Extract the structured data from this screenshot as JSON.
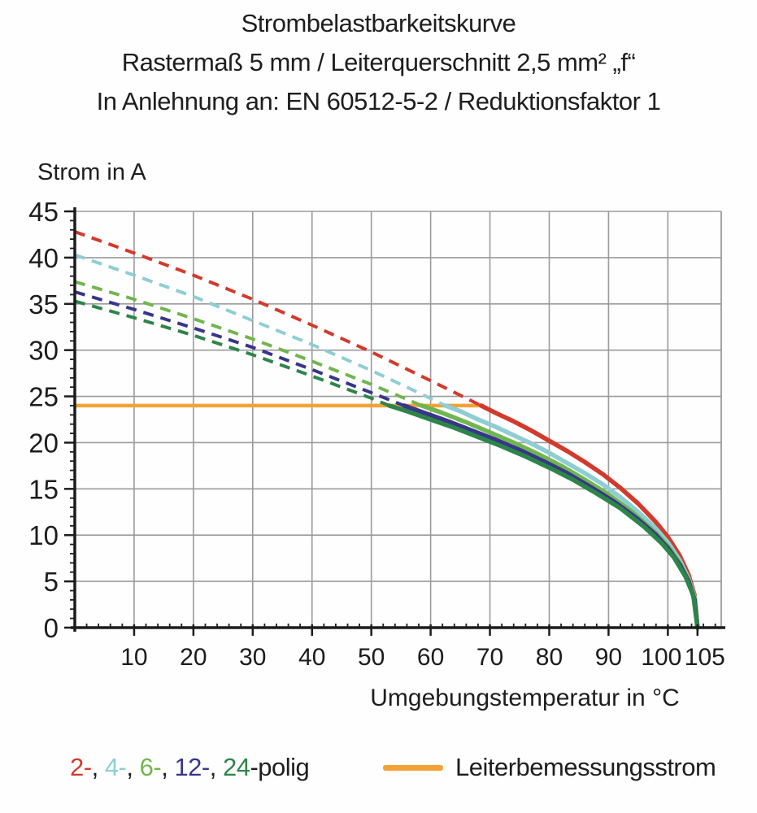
{
  "title": {
    "line1": "Strombelastbarkeitskurve",
    "line2": "Rastermaß 5 mm / Leiterquerschnitt 2,5 mm² „f“",
    "line3": "In Anlehnung an: EN 60512-5-2 / Reduktionsfaktor 1"
  },
  "chart_data": {
    "type": "line",
    "ylabel": "Strom in A",
    "xlabel": "Umgebungstemperatur in °C",
    "xlim": [
      0,
      109
    ],
    "ylim": [
      0,
      45
    ],
    "x_major_ticks": [
      10,
      20,
      30,
      40,
      50,
      60,
      70,
      80,
      90,
      100,
      105
    ],
    "x_minor_step": 2,
    "y_major_ticks": [
      0,
      5,
      10,
      15,
      20,
      25,
      30,
      35,
      40,
      45
    ],
    "y_minor_step": 1,
    "grid": {
      "x_lines": [
        10,
        20,
        30,
        40,
        50,
        60,
        70,
        80,
        90,
        100
      ],
      "y_lines": [
        5,
        10,
        15,
        20,
        25,
        30,
        35,
        40,
        45
      ],
      "color": "#9b9b9b"
    },
    "axis_color": "#1c1c1c",
    "reference_line": {
      "label": "Leiterbemessungsstrom",
      "color": "#f2a237",
      "y": 24,
      "x_from": 0,
      "x_to": 69
    },
    "series": [
      {
        "name": "2-polig",
        "color": "#d23a2c",
        "dashed": [
          [
            0,
            42.8
          ],
          [
            10,
            40.5
          ],
          [
            20,
            38.1
          ],
          [
            30,
            35.5
          ],
          [
            40,
            32.7
          ],
          [
            50,
            29.8
          ],
          [
            60,
            26.7
          ],
          [
            68.5,
            24
          ]
        ],
        "solid": [
          [
            68.5,
            24
          ],
          [
            71,
            23.2
          ],
          [
            74,
            22.3
          ],
          [
            77,
            21.3
          ],
          [
            80,
            20.2
          ],
          [
            83,
            19.1
          ],
          [
            86,
            17.9
          ],
          [
            89,
            16.6
          ],
          [
            92,
            15.1
          ],
          [
            95,
            13.4
          ],
          [
            98,
            11.4
          ],
          [
            100,
            9.8
          ],
          [
            102,
            7.8
          ],
          [
            103.5,
            5.7
          ],
          [
            104.5,
            3.5
          ],
          [
            105,
            0
          ]
        ]
      },
      {
        "name": "4-polig",
        "color": "#8ecdd4",
        "dashed": [
          [
            0,
            40.3
          ],
          [
            10,
            38.1
          ],
          [
            20,
            35.8
          ],
          [
            30,
            33.2
          ],
          [
            40,
            30.6
          ],
          [
            50,
            27.8
          ],
          [
            56,
            26.0
          ],
          [
            62.5,
            24
          ]
        ],
        "solid": [
          [
            62.5,
            24
          ],
          [
            65,
            23.4
          ],
          [
            68,
            22.5
          ],
          [
            71,
            21.7
          ],
          [
            74,
            20.8
          ],
          [
            77,
            19.9
          ],
          [
            80,
            18.9
          ],
          [
            83,
            17.8
          ],
          [
            86,
            16.7
          ],
          [
            89,
            15.5
          ],
          [
            92,
            14.1
          ],
          [
            95,
            12.5
          ],
          [
            98,
            10.7
          ],
          [
            100,
            9.2
          ],
          [
            102,
            7.3
          ],
          [
            103.5,
            5.3
          ],
          [
            104.5,
            3.3
          ],
          [
            105,
            0
          ]
        ]
      },
      {
        "name": "6-polig",
        "color": "#70b64f",
        "dashed": [
          [
            0,
            37.4
          ],
          [
            10,
            35.5
          ],
          [
            20,
            33.4
          ],
          [
            30,
            31.2
          ],
          [
            40,
            28.8
          ],
          [
            50,
            26.3
          ],
          [
            58.5,
            24
          ]
        ],
        "solid": [
          [
            58.5,
            24
          ],
          [
            62,
            23.2
          ],
          [
            66,
            22.2
          ],
          [
            70,
            21.1
          ],
          [
            74,
            20.0
          ],
          [
            78,
            18.8
          ],
          [
            82,
            17.5
          ],
          [
            86,
            16.0
          ],
          [
            90,
            14.4
          ],
          [
            94,
            12.5
          ],
          [
            98,
            10.2
          ],
          [
            100,
            8.8
          ],
          [
            102,
            7.0
          ],
          [
            103.5,
            5.1
          ],
          [
            104.5,
            3.1
          ],
          [
            105,
            0
          ]
        ]
      },
      {
        "name": "12-polig",
        "color": "#37368b",
        "dashed": [
          [
            0,
            36.3
          ],
          [
            10,
            34.4
          ],
          [
            20,
            32.4
          ],
          [
            30,
            30.3
          ],
          [
            40,
            27.9
          ],
          [
            50,
            25.4
          ],
          [
            55.5,
            24
          ]
        ],
        "solid": [
          [
            55.5,
            24
          ],
          [
            59,
            23.2
          ],
          [
            63,
            22.3
          ],
          [
            67,
            21.3
          ],
          [
            71,
            20.3
          ],
          [
            75,
            19.2
          ],
          [
            79,
            18.0
          ],
          [
            83,
            16.7
          ],
          [
            87,
            15.2
          ],
          [
            91,
            13.6
          ],
          [
            95,
            11.7
          ],
          [
            98,
            10.0
          ],
          [
            100,
            8.6
          ],
          [
            102,
            6.8
          ],
          [
            103.5,
            5.0
          ],
          [
            104.5,
            3.0
          ],
          [
            105,
            0
          ]
        ]
      },
      {
        "name": "24-polig",
        "color": "#2d8549",
        "dashed": [
          [
            0,
            35.3
          ],
          [
            10,
            33.5
          ],
          [
            20,
            31.6
          ],
          [
            30,
            29.5
          ],
          [
            40,
            27.2
          ],
          [
            50,
            24.8
          ],
          [
            53,
            24
          ]
        ],
        "solid": [
          [
            53,
            24
          ],
          [
            56,
            23.4
          ],
          [
            60,
            22.5
          ],
          [
            64,
            21.6
          ],
          [
            68,
            20.6
          ],
          [
            72,
            19.6
          ],
          [
            76,
            18.5
          ],
          [
            80,
            17.3
          ],
          [
            84,
            16.0
          ],
          [
            88,
            14.5
          ],
          [
            92,
            12.9
          ],
          [
            96,
            10.9
          ],
          [
            99,
            9.1
          ],
          [
            101,
            7.6
          ],
          [
            103,
            5.5
          ],
          [
            104.3,
            3.5
          ],
          [
            105,
            0
          ]
        ]
      }
    ]
  },
  "legend": {
    "pole_items": [
      {
        "label": "2-",
        "color": "#d23a2c"
      },
      {
        "label": "4-",
        "color": "#8ecdd4"
      },
      {
        "label": "6-",
        "color": "#70b64f"
      },
      {
        "label": "12-",
        "color": "#37368b"
      },
      {
        "label": "24",
        "color": "#2d8549"
      }
    ],
    "separator": ", ",
    "suffix": "-polig",
    "reference_label": "Leiterbemessungsstrom",
    "reference_color": "#f2a237"
  }
}
